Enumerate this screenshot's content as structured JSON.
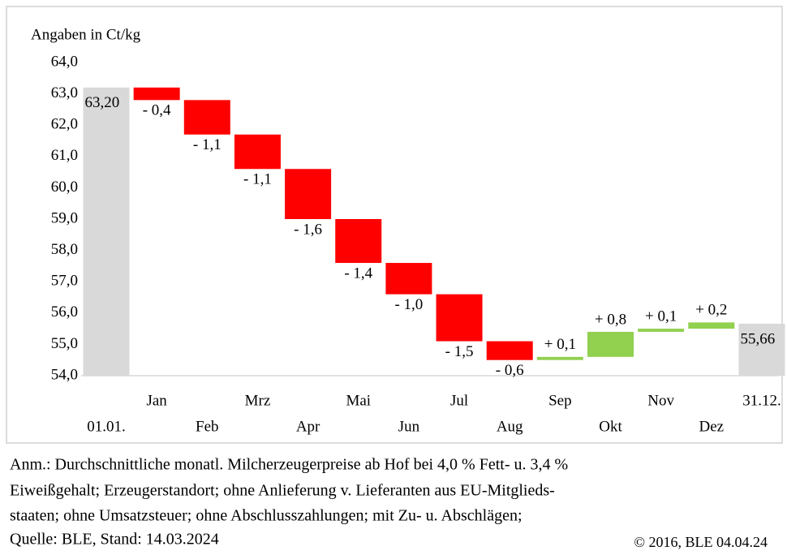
{
  "chart_data": {
    "type": "waterfall",
    "axis_label": "Angaben in Ct/kg",
    "categories": [
      "01.01.",
      "Jan",
      "Feb",
      "Mrz",
      "Apr",
      "Mai",
      "Jun",
      "Jul",
      "Aug",
      "Sep",
      "Okt",
      "Nov",
      "Dez",
      "31.12."
    ],
    "values": [
      63.2,
      -0.4,
      -1.1,
      -1.1,
      -1.6,
      -1.4,
      -1.0,
      -1.5,
      -0.6,
      0.1,
      0.8,
      0.1,
      0.2,
      55.66
    ],
    "value_labels": [
      "63,20",
      "- 0,4",
      "- 1,1",
      "- 1,1",
      "- 1,6",
      "- 1,4",
      "- 1,0",
      "- 1,5",
      "- 0,6",
      "+ 0,1",
      "+ 0,8",
      "+ 0,1",
      "+ 0,2",
      "55,66"
    ],
    "colors": {
      "total": "#d9d9d9",
      "decrease": "#ff0000",
      "increase": "#92d050"
    },
    "ylim": [
      54,
      64
    ],
    "yticks": [
      {
        "value": 54,
        "label": "54,0"
      },
      {
        "value": 55,
        "label": "55,0"
      },
      {
        "value": 56,
        "label": "56,0"
      },
      {
        "value": 57,
        "label": "57,0"
      },
      {
        "value": 58,
        "label": "58,0"
      },
      {
        "value": 59,
        "label": "59,0"
      },
      {
        "value": 60,
        "label": "60,0"
      },
      {
        "value": 61,
        "label": "61,0"
      },
      {
        "value": 62,
        "label": "62,0"
      },
      {
        "value": 63,
        "label": "63,0"
      },
      {
        "value": 64,
        "label": "64,0"
      }
    ],
    "notes": [
      "Anm.: Durchschnittliche monatl. Milcherzeugerpreise ab Hof bei 4,0 % Fett- u. 3,4 %",
      "Eiweißgehalt; Erzeugerstandort; ohne Anlieferung v. Lieferanten aus EU-Mitglieds-",
      "staaten; ohne Umsatzsteuer; ohne Abschlusszahlungen; mit Zu- u. Abschlägen;",
      "Quelle:  BLE,  Stand: 14.03.2024"
    ],
    "copyright": "© 2016, BLE 04.04.24"
  }
}
